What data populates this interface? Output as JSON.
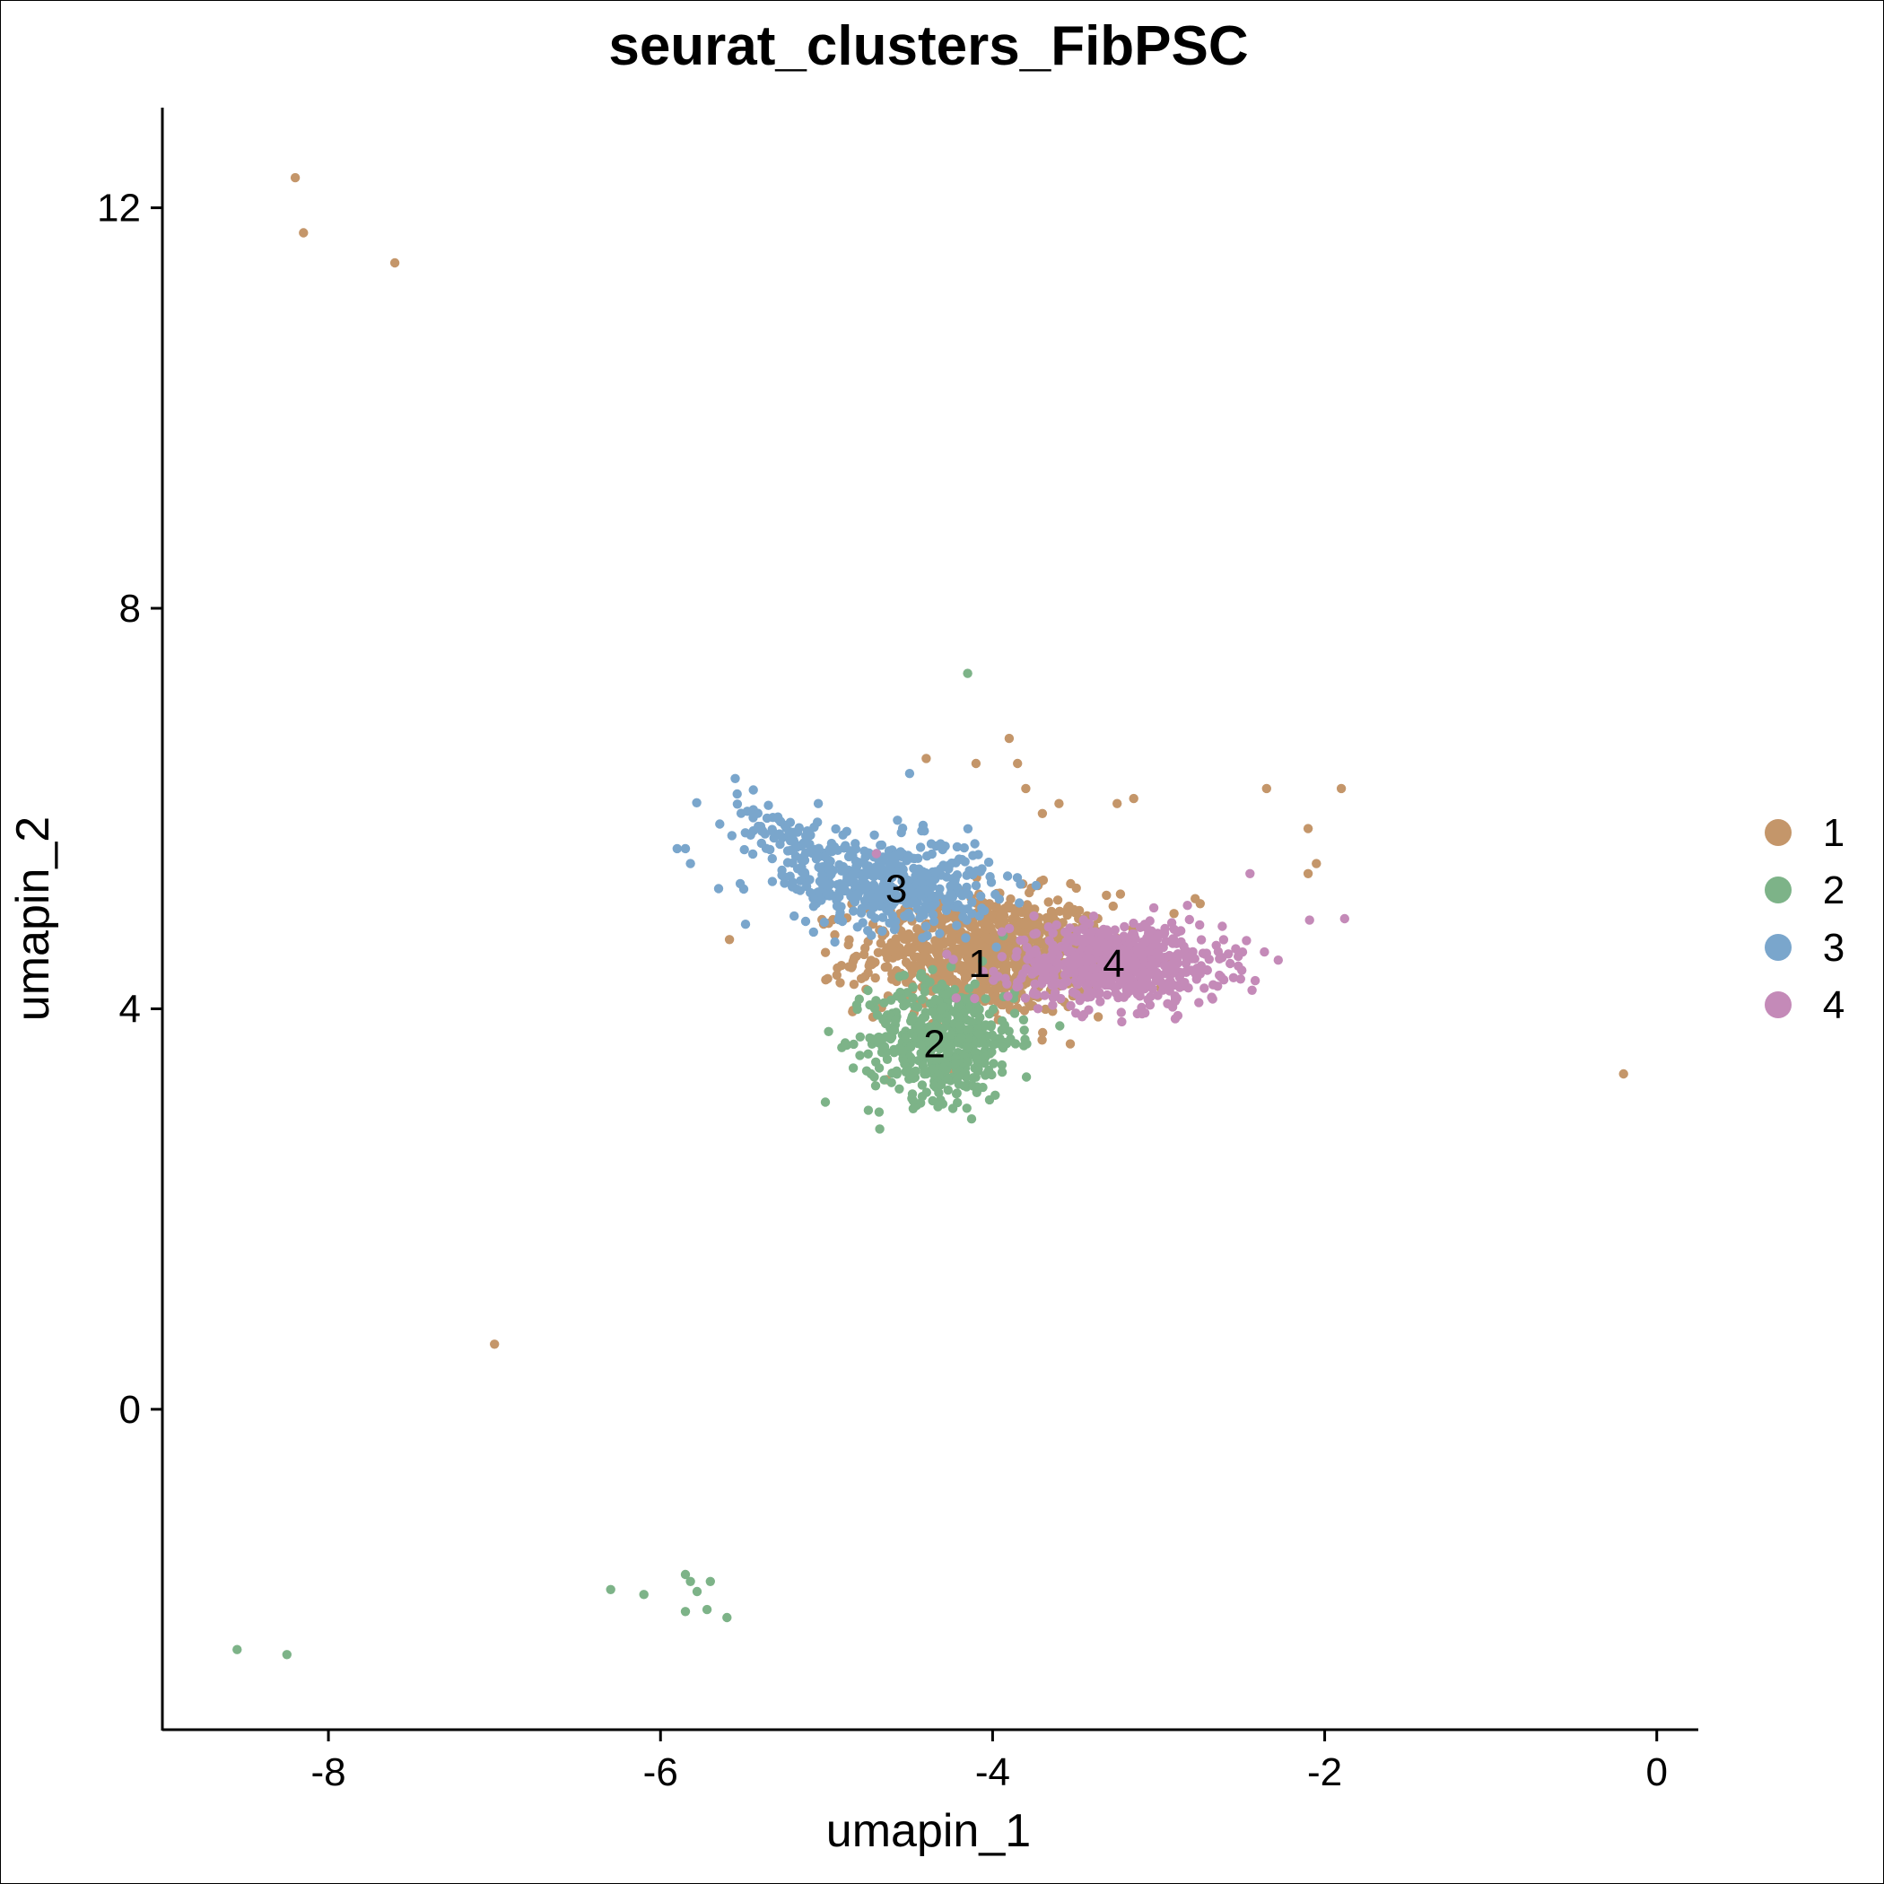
{
  "chart_data": {
    "type": "scatter",
    "title": "seurat_clusters_FibPSC",
    "xlabel": "umapin_1",
    "ylabel": "umapin_2",
    "xlim": [
      -9.0,
      0.25
    ],
    "ylim": [
      -3.2,
      13.0
    ],
    "xticks": [
      -8,
      -6,
      -4,
      -2,
      0
    ],
    "yticks": [
      0,
      4,
      8,
      12
    ],
    "xtick_labels": [
      "-8",
      "-6",
      "-4",
      "-2",
      "0"
    ],
    "ytick_labels": [
      "0",
      "4",
      "8",
      "12"
    ],
    "grid": false,
    "legend_position": "right",
    "series": [
      {
        "name": "1",
        "color": "#C4966A",
        "cluster_label": {
          "text": "1",
          "x": -4.08,
          "y": 4.45
        },
        "outliers": [
          [
            -8.2,
            12.3
          ],
          [
            -8.15,
            11.75
          ],
          [
            -7.6,
            11.45
          ],
          [
            -7.0,
            0.65
          ],
          [
            -4.4,
            6.5
          ],
          [
            -3.9,
            6.7
          ],
          [
            -3.85,
            6.45
          ],
          [
            -4.1,
            6.45
          ],
          [
            -3.8,
            6.2
          ],
          [
            -3.6,
            6.05
          ],
          [
            -3.25,
            6.05
          ],
          [
            -3.15,
            6.1
          ],
          [
            -3.7,
            5.95
          ],
          [
            -2.35,
            6.2
          ],
          [
            -1.9,
            6.2
          ],
          [
            -2.1,
            5.8
          ],
          [
            -2.05,
            5.45
          ],
          [
            -2.1,
            5.35
          ],
          [
            -2.75,
            5.05
          ],
          [
            -2.78,
            5.1
          ],
          [
            -0.2,
            3.35
          ]
        ],
        "cloud": {
          "cx": -4.05,
          "cy": 4.55,
          "sx": 0.38,
          "sy": 0.3,
          "n": 850
        }
      },
      {
        "name": "2",
        "color": "#7DB388",
        "cluster_label": {
          "text": "2",
          "x": -4.35,
          "y": 3.65
        },
        "outliers": [
          [
            -4.15,
            7.35
          ],
          [
            -5.85,
            -1.65
          ],
          [
            -5.82,
            -1.72
          ],
          [
            -5.7,
            -1.72
          ],
          [
            -5.78,
            -1.82
          ],
          [
            -6.3,
            -1.8
          ],
          [
            -6.1,
            -1.85
          ],
          [
            -5.85,
            -2.02
          ],
          [
            -5.72,
            -2.0
          ],
          [
            -5.6,
            -2.08
          ],
          [
            -8.55,
            -2.4
          ],
          [
            -8.25,
            -2.45
          ],
          [
            -4.68,
            2.8
          ],
          [
            -4.3,
            3.05
          ]
        ],
        "cloud": {
          "cx": -4.3,
          "cy": 3.7,
          "sx": 0.22,
          "sy": 0.3,
          "n": 520
        }
      },
      {
        "name": "3",
        "color": "#7AA6CC",
        "cluster_label": {
          "text": "3",
          "x": -4.58,
          "y": 5.2
        },
        "outliers": [
          [
            -5.55,
            6.3
          ],
          [
            -5.9,
            5.6
          ],
          [
            -5.85,
            5.6
          ],
          [
            -5.82,
            5.45
          ],
          [
            -5.65,
            5.2
          ],
          [
            -5.52,
            5.25
          ],
          [
            -4.5,
            6.35
          ],
          [
            -5.05,
            6.05
          ]
        ],
        "cloud": {
          "cx": -4.6,
          "cy": 5.25,
          "sx": 0.3,
          "sy": 0.22,
          "n": 420
        },
        "arm": {
          "from": [
            -5.5,
            5.95
          ],
          "to": [
            -4.8,
            5.25
          ],
          "n": 120
        }
      },
      {
        "name": "4",
        "color": "#C48AB8",
        "cluster_label": {
          "text": "4",
          "x": -3.27,
          "y": 4.45
        },
        "outliers": [
          [
            -2.45,
            5.35
          ],
          [
            -1.88,
            4.9
          ],
          [
            -4.7,
            5.55
          ],
          [
            -3.1,
            3.95
          ],
          [
            -2.9,
            3.9
          ],
          [
            -2.75,
            4.35
          ]
        ],
        "cloud": {
          "cx": -3.25,
          "cy": 4.45,
          "sx": 0.32,
          "sy": 0.2,
          "n": 650
        }
      }
    ]
  }
}
